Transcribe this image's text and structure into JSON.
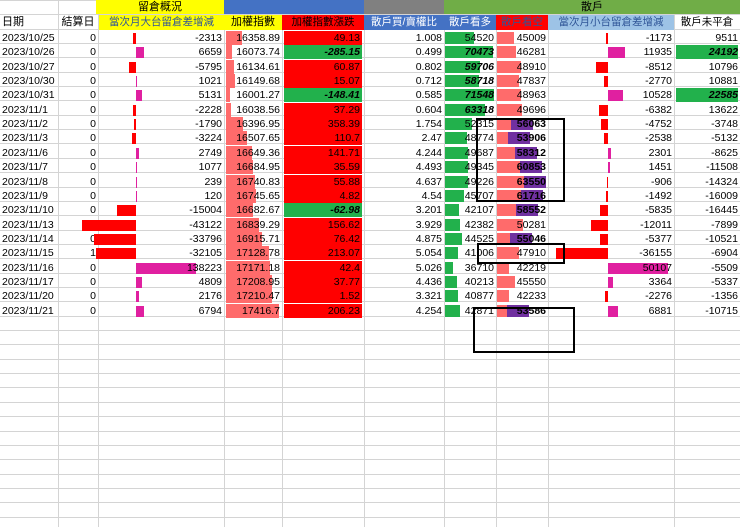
{
  "groups": {
    "position": "留倉概況",
    "retail": "散戶"
  },
  "headers": {
    "date": "日期",
    "settle": "結算日",
    "big_oi": "當次月大台留倉差增減",
    "index": "加權指數",
    "index_change": "加權指數漲跌",
    "ratio": "散戶買/賣權比",
    "retail_long": "散戶看多",
    "retail_short": "散戶看空",
    "small_oi": "當次月小台留倉差增減",
    "retail_net": "散戶未平倉"
  },
  "colors": {
    "yellow_header": "#ffff00",
    "blue_header": "#4472c4",
    "red_header": "#ff0000",
    "gray_header": "#808080",
    "green_header": "#70ad47",
    "red_fill": "#ff0000",
    "light_red_bar": "#ff6b6b",
    "green_bar": "#22b14c",
    "purple_bar": "#7030a0",
    "magenta_bar": "#e020a0"
  },
  "rows": [
    {
      "date": "2023/10/25",
      "settle": "0",
      "big_oi": "-2313",
      "index": "16358.89",
      "change": "49.13",
      "ratio": "1.008",
      "long": "54520",
      "short": "45009",
      "small_oi": "-1173",
      "net": "9511"
    },
    {
      "date": "2023/10/26",
      "settle": "0",
      "big_oi": "6659",
      "index": "16073.74",
      "change": "-285.15",
      "ratio": "0.499",
      "long": "70473",
      "short": "46281",
      "small_oi": "11935",
      "net": "24192"
    },
    {
      "date": "2023/10/27",
      "settle": "0",
      "big_oi": "-5795",
      "index": "16134.61",
      "change": "60.87",
      "ratio": "0.802",
      "long": "59706",
      "short": "48910",
      "small_oi": "-8512",
      "net": "10796"
    },
    {
      "date": "2023/10/30",
      "settle": "0",
      "big_oi": "1021",
      "index": "16149.68",
      "change": "15.07",
      "ratio": "0.712",
      "long": "58718",
      "short": "47837",
      "small_oi": "-2770",
      "net": "10881"
    },
    {
      "date": "2023/10/31",
      "settle": "0",
      "big_oi": "5131",
      "index": "16001.27",
      "change": "-148.41",
      "ratio": "0.585",
      "long": "71548",
      "short": "48963",
      "small_oi": "10528",
      "net": "22585"
    },
    {
      "date": "2023/11/1",
      "settle": "0",
      "big_oi": "-2228",
      "index": "16038.56",
      "change": "37.29",
      "ratio": "0.604",
      "long": "63318",
      "short": "49696",
      "small_oi": "-6382",
      "net": "13622"
    },
    {
      "date": "2023/11/2",
      "settle": "0",
      "big_oi": "-1790",
      "index": "16396.95",
      "change": "358.39",
      "ratio": "1.754",
      "long": "52315",
      "short": "56063",
      "small_oi": "-4752",
      "net": "-3748"
    },
    {
      "date": "2023/11/3",
      "settle": "0",
      "big_oi": "-3224",
      "index": "16507.65",
      "change": "110.7",
      "ratio": "2.47",
      "long": "48774",
      "short": "53906",
      "small_oi": "-2538",
      "net": "-5132"
    },
    {
      "date": "2023/11/6",
      "settle": "0",
      "big_oi": "2749",
      "index": "16649.36",
      "change": "141.71",
      "ratio": "4.244",
      "long": "49687",
      "short": "58312",
      "small_oi": "2301",
      "net": "-8625"
    },
    {
      "date": "2023/11/7",
      "settle": "0",
      "big_oi": "1077",
      "index": "16684.95",
      "change": "35.59",
      "ratio": "4.493",
      "long": "49345",
      "short": "60853",
      "small_oi": "1451",
      "net": "-11508"
    },
    {
      "date": "2023/11/8",
      "settle": "0",
      "big_oi": "239",
      "index": "16740.83",
      "change": "55.88",
      "ratio": "4.637",
      "long": "49226",
      "short": "63550",
      "small_oi": "-906",
      "net": "-14324"
    },
    {
      "date": "2023/11/9",
      "settle": "0",
      "big_oi": "120",
      "index": "16745.65",
      "change": "4.82",
      "ratio": "4.54",
      "long": "45707",
      "short": "61716",
      "small_oi": "-1492",
      "net": "-16009"
    },
    {
      "date": "2023/11/10",
      "settle": "0",
      "big_oi": "-15004",
      "index": "16682.67",
      "change": "-62.98",
      "ratio": "3.201",
      "long": "42107",
      "short": "58552",
      "small_oi": "-5835",
      "net": "-16445"
    },
    {
      "date": "2023/11/13",
      "settle": "0",
      "big_oi": "-43122",
      "index": "16839.29",
      "change": "156.62",
      "ratio": "3.929",
      "long": "42382",
      "short": "50281",
      "small_oi": "-12011",
      "net": "-7899"
    },
    {
      "date": "2023/11/14",
      "settle": "0",
      "big_oi": "-33796",
      "index": "16915.71",
      "change": "76.42",
      "ratio": "4.875",
      "long": "44525",
      "short": "55046",
      "small_oi": "-5377",
      "net": "-10521"
    },
    {
      "date": "2023/11/15",
      "settle": "1",
      "big_oi": "-32105",
      "index": "17128.78",
      "change": "213.07",
      "ratio": "5.054",
      "long": "41006",
      "short": "47910",
      "small_oi": "-36155",
      "net": "-6904"
    },
    {
      "date": "2023/11/16",
      "settle": "0",
      "big_oi": "138223",
      "index": "17171.18",
      "change": "42.4",
      "ratio": "5.026",
      "long": "36710",
      "short": "42219",
      "small_oi": "50107",
      "net": "-5509"
    },
    {
      "date": "2023/11/17",
      "settle": "0",
      "big_oi": "4809",
      "index": "17208.95",
      "change": "37.77",
      "ratio": "4.436",
      "long": "40213",
      "short": "45550",
      "small_oi": "3364",
      "net": "-5337"
    },
    {
      "date": "2023/11/20",
      "settle": "0",
      "big_oi": "2176",
      "index": "17210.47",
      "change": "1.52",
      "ratio": "3.321",
      "long": "40877",
      "short": "42233",
      "small_oi": "-2276",
      "net": "-1356"
    },
    {
      "date": "2023/11/21",
      "settle": "0",
      "big_oi": "6794",
      "index": "17416.7",
      "change": "206.23",
      "ratio": "4.254",
      "long": "42871",
      "short": "53586",
      "small_oi": "6881",
      "net": "-10715"
    }
  ]
}
